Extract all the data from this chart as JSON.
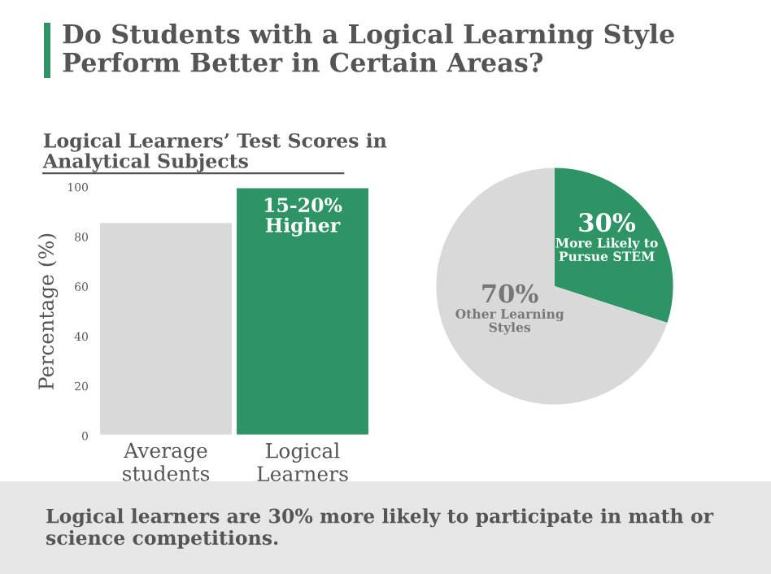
{
  "chart_data": [
    {
      "type": "other",
      "title": "Do Students with a Logical Learning Style Perform Better in Certain Areas?",
      "annotations": [
        "Logical learners are 30% more likely to participate in math or science competitions."
      ]
    },
    {
      "type": "bar",
      "title": "Logical Learners’ Test Scores in Analytical Subjects",
      "ylabel": "Percentage (%)",
      "categories": [
        "Average students",
        "Logical Learners"
      ],
      "values": [
        86,
        100
      ],
      "colors": [
        "#d9d9d9",
        "#2e9466"
      ],
      "ylim": [
        0,
        100
      ],
      "yticks": [
        0,
        20,
        40,
        60,
        80,
        100
      ],
      "annotations": [
        "15-20% Higher"
      ]
    },
    {
      "type": "pie",
      "categories": [
        "More Likely to Pursue STEM",
        "Other Learning Styles"
      ],
      "values": [
        30,
        70
      ],
      "colors": [
        "#2e9466",
        "#d9d9d9"
      ],
      "value_labels": [
        "30%",
        "70%"
      ]
    }
  ]
}
